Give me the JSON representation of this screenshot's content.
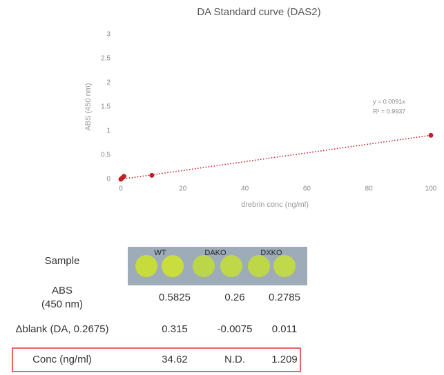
{
  "chart_data": {
    "type": "scatter",
    "title": "DA Standard curve (DAS2)",
    "x_label": "drebrin conc (ng/ml)",
    "y_label": "ABS (450 nm)",
    "x": [
      0,
      0.5,
      1,
      10,
      100
    ],
    "values": [
      0,
      0.03,
      0.06,
      0.08,
      0.91
    ],
    "color": "#c0202a",
    "xlim": [
      0,
      100
    ],
    "xticks": [
      0,
      20,
      40,
      60,
      80,
      100
    ],
    "ylim": [
      0,
      3
    ],
    "yticks": [
      0,
      0.5,
      1,
      1.5,
      2,
      2.5,
      3
    ],
    "trendline": {
      "slope": 0.0091,
      "color": "#c0202a"
    },
    "annotations": [
      "y = 0.0091x",
      "R² = 0.9937"
    ]
  },
  "table": {
    "image_labels": [
      "WT",
      "DAKO",
      "DXKO"
    ],
    "rows": [
      {
        "label": [
          "Sample"
        ],
        "cells": []
      },
      {
        "label": [
          "ABS",
          "(450 nm)"
        ],
        "cells": [
          "0.5825",
          "0.26",
          "0.2785"
        ]
      },
      {
        "label": [
          "Δblank (DA, 0.2675)"
        ],
        "cells": [
          "0.315",
          "-0.0075",
          "0.011"
        ]
      },
      {
        "label": [
          "Conc (ng/ml)"
        ],
        "cells": [
          "34.62",
          "N.D.",
          "1.209"
        ]
      }
    ]
  }
}
